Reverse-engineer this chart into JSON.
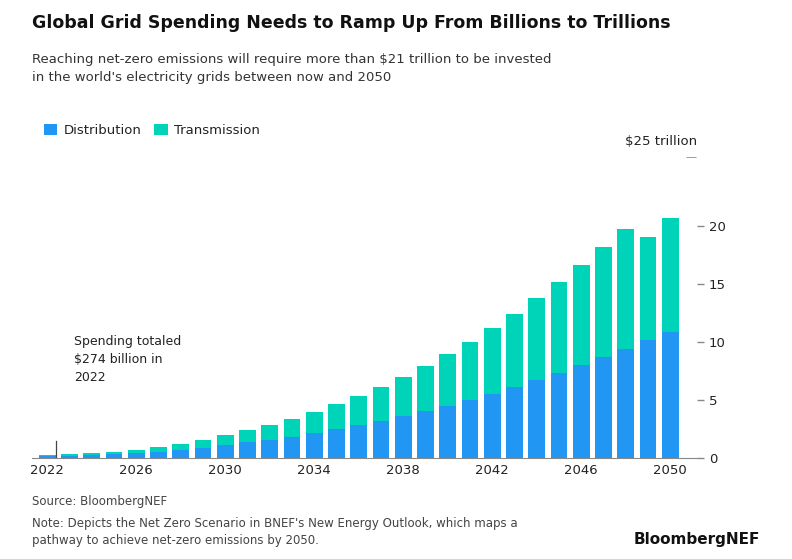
{
  "title": "Global Grid Spending Needs to Ramp Up From Billions to Trillions",
  "subtitle": "Reaching net-zero emissions will require more than $21 trillion to be invested\nin the world's electricity grids between now and 2050",
  "annotation": "Spending totaled\n$274 billion in\n2022",
  "source": "Source: BloombergNEF",
  "note": "Note: Depicts the Net Zero Scenario in BNEF's New Energy Outlook, which maps a\npathway to achieve net-zero emissions by 2050.",
  "watermark": "BloombergNEF",
  "yaxis_label": "$25 trillion",
  "legend": [
    "Distribution",
    "Transmission"
  ],
  "colors": {
    "distribution": "#2196F3",
    "transmission": "#00D4B8",
    "background": "#FFFFFF"
  },
  "years": [
    2022,
    2023,
    2024,
    2025,
    2026,
    2027,
    2028,
    2029,
    2030,
    2031,
    2032,
    2033,
    2034,
    2035,
    2036,
    2037,
    2038,
    2039,
    2040,
    2041,
    2042,
    2043,
    2044,
    2045,
    2046,
    2047,
    2048,
    2049,
    2050
  ],
  "distribution": [
    0.18,
    0.22,
    0.28,
    0.36,
    0.46,
    0.58,
    0.74,
    0.93,
    1.15,
    1.38,
    1.62,
    1.88,
    2.18,
    2.5,
    2.85,
    3.22,
    3.62,
    4.05,
    4.52,
    5.02,
    5.55,
    6.12,
    6.72,
    7.35,
    8.0,
    8.68,
    9.4,
    10.15,
    10.9
  ],
  "transmission": [
    0.09,
    0.12,
    0.16,
    0.21,
    0.28,
    0.37,
    0.5,
    0.65,
    0.83,
    1.04,
    1.27,
    1.52,
    1.82,
    2.15,
    2.52,
    2.93,
    3.38,
    3.87,
    4.42,
    5.01,
    5.65,
    6.33,
    7.05,
    7.82,
    8.62,
    9.47,
    10.35,
    8.85,
    9.8
  ],
  "ylim": [
    0,
    25
  ],
  "yticks": [
    0,
    5,
    10,
    15,
    20
  ],
  "xticks": [
    2022,
    2026,
    2030,
    2034,
    2038,
    2042,
    2046,
    2050
  ]
}
